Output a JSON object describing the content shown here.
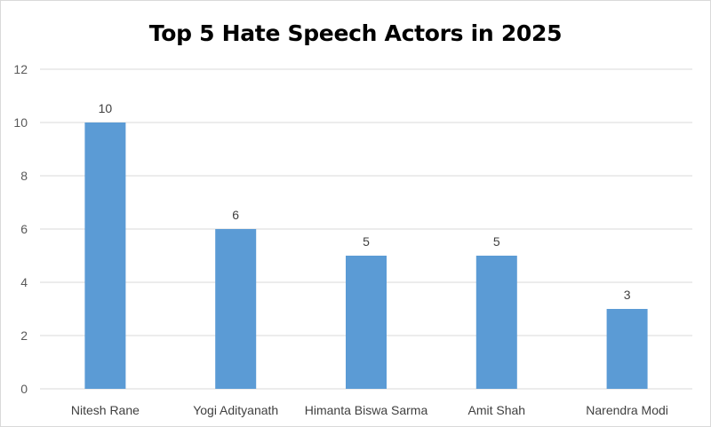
{
  "chart_data": {
    "type": "bar",
    "title": "Top 5 Hate Speech Actors in 2025",
    "categories": [
      "Nitesh Rane",
      "Yogi Adityanath",
      "Himanta Biswa Sarma",
      "Amit Shah",
      "Narendra Modi"
    ],
    "values": [
      10,
      6,
      5,
      5,
      3
    ],
    "yticks": [
      0,
      2,
      4,
      6,
      8,
      10,
      12
    ],
    "ylim": [
      0,
      12
    ],
    "xlabel": "",
    "ylabel": "",
    "grid": true,
    "legend": "none",
    "bar_color": "#5b9bd5",
    "gridline_color": "#d9d9d9"
  }
}
